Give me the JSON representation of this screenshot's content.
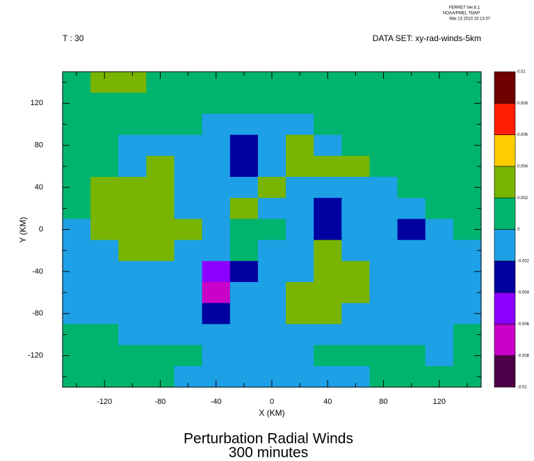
{
  "chart_data": {
    "type": "contour",
    "title": "Perturbation Radial Winds",
    "subtitle": "300 minutes",
    "x_label": "X (KM)",
    "y_label": "Y (KM)",
    "header_left": "T : 30",
    "header_right": "DATA SET: xy-rad-winds-5km",
    "stamp": [
      "FERRET Ver.6.1",
      "NOAA/PMEL TMAP",
      "Mar 13 2010 15:13:37"
    ],
    "xlim": [
      -150,
      150
    ],
    "ylim": [
      -150,
      150
    ],
    "xticks": [
      -120,
      -80,
      -40,
      0,
      40,
      80,
      120
    ],
    "yticks": [
      -120,
      -80,
      -40,
      0,
      40,
      80,
      120
    ],
    "xminorticks": [
      -140,
      -100,
      -60,
      -20,
      20,
      60,
      100,
      140
    ],
    "yminorticks": [
      -140,
      -100,
      -60,
      -20,
      20,
      60,
      100,
      140
    ],
    "levels": [
      -0.01,
      -0.008,
      -0.006,
      -0.004,
      -0.002,
      0,
      0.002,
      0.004,
      0.006,
      0.008,
      0.01
    ],
    "colors": [
      "#4a0046",
      "#c800c8",
      "#8c00ff",
      "#0000a0",
      "#1ea0e6",
      "#00b46e",
      "#78b400",
      "#ffcc00",
      "#ff1e00",
      "#6e0000"
    ],
    "x": [
      -140,
      -120,
      -100,
      -80,
      -60,
      -40,
      -20,
      0,
      20,
      40,
      60,
      80,
      100,
      120,
      140
    ],
    "y": [
      140,
      120,
      100,
      80,
      60,
      40,
      20,
      0,
      -20,
      -40,
      -60,
      -80,
      -100,
      -120,
      -140
    ],
    "z": [
      [
        0.001,
        0.003,
        0.003,
        0.001,
        0.001,
        0.001,
        0.001,
        0.001,
        0.001,
        0.001,
        0.001,
        0.001,
        0.001,
        0.001,
        0.001
      ],
      [
        0.001,
        0.001,
        0.001,
        0.001,
        0.001,
        0.001,
        0.001,
        0.001,
        0.001,
        0.001,
        0.001,
        0.001,
        0.001,
        0.001,
        0.001
      ],
      [
        0.001,
        0.001,
        0.001,
        0.001,
        0.001,
        -0.001,
        -0.001,
        -0.001,
        -0.001,
        0.001,
        0.001,
        0.001,
        0.001,
        0.001,
        0.001
      ],
      [
        0.001,
        0.001,
        -0.001,
        -0.001,
        -0.001,
        -0.001,
        -0.003,
        -0.001,
        0.003,
        -0.001,
        0.001,
        0.001,
        0.001,
        0.001,
        0.001
      ],
      [
        0.001,
        0.001,
        -0.001,
        0.003,
        -0.001,
        -0.001,
        -0.003,
        -0.001,
        0.003,
        0.003,
        0.003,
        0.001,
        0.001,
        0.001,
        0.001
      ],
      [
        0.001,
        0.003,
        0.003,
        0.003,
        -0.001,
        -0.001,
        -0.001,
        0.003,
        -0.001,
        -0.001,
        -0.001,
        -0.001,
        0.001,
        0.001,
        0.001
      ],
      [
        0.001,
        0.003,
        0.003,
        0.003,
        -0.001,
        -0.001,
        0.003,
        -0.001,
        -0.001,
        -0.003,
        -0.001,
        -0.001,
        -0.001,
        0.001,
        0.001
      ],
      [
        -0.001,
        0.003,
        0.003,
        0.003,
        0.003,
        -0.001,
        0.001,
        0.001,
        -0.001,
        -0.003,
        -0.001,
        -0.001,
        -0.003,
        -0.001,
        0.001
      ],
      [
        -0.001,
        -0.001,
        0.003,
        0.003,
        -0.001,
        -0.001,
        0.001,
        -0.001,
        -0.001,
        0.003,
        -0.001,
        -0.001,
        -0.001,
        -0.001,
        -0.001
      ],
      [
        -0.001,
        -0.001,
        -0.001,
        -0.001,
        -0.001,
        -0.005,
        -0.003,
        -0.001,
        -0.001,
        0.003,
        0.003,
        -0.001,
        -0.001,
        -0.001,
        -0.001
      ],
      [
        -0.001,
        -0.001,
        -0.001,
        -0.001,
        -0.001,
        -0.007,
        -0.001,
        -0.001,
        0.003,
        0.003,
        0.003,
        -0.001,
        -0.001,
        -0.001,
        -0.001
      ],
      [
        -0.001,
        -0.001,
        -0.001,
        -0.001,
        -0.001,
        -0.003,
        -0.001,
        -0.001,
        0.003,
        0.003,
        -0.001,
        -0.001,
        -0.001,
        -0.001,
        -0.001
      ],
      [
        0.001,
        0.001,
        -0.001,
        -0.001,
        -0.001,
        -0.001,
        -0.001,
        -0.001,
        -0.001,
        -0.001,
        -0.001,
        -0.001,
        -0.001,
        -0.001,
        0.001
      ],
      [
        0.001,
        0.001,
        0.001,
        0.001,
        0.001,
        -0.001,
        -0.001,
        -0.001,
        -0.001,
        0.001,
        0.001,
        0.001,
        0.001,
        -0.001,
        0.001
      ],
      [
        0.001,
        0.001,
        0.001,
        0.001,
        -0.001,
        -0.001,
        -0.001,
        -0.001,
        -0.001,
        -0.001,
        -0.001,
        0.001,
        0.001,
        0.001,
        0.001
      ]
    ]
  }
}
